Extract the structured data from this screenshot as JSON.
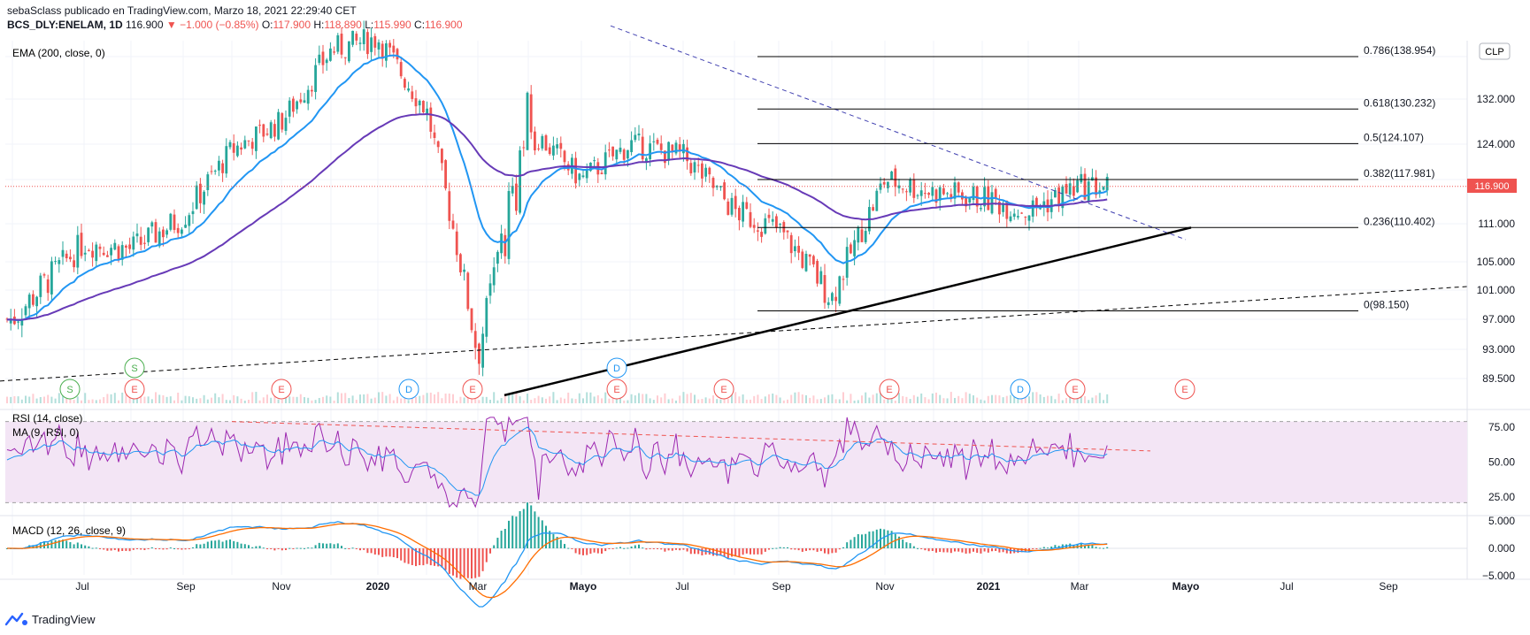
{
  "header": {
    "line1": "sebaSclass publicado en TradingView.com, Marzo 18, 2021 22:29:40 CET",
    "symbol": "BCS_DLY:ENELAM, 1D",
    "price": "116.900",
    "change": "▼ −1.000 (−0.85%)",
    "o_label": "O:",
    "o_val": "117.900",
    "h_label": "H:",
    "h_val": "118.890",
    "l_label": "L:",
    "l_val": "115.990",
    "c_label": "C:",
    "c_val": "116.900"
  },
  "indicators": {
    "ema": "EMA (200, close, 0)",
    "rsi": "RSI (14, close)",
    "rsi_ma": "MA (9, RSI, 0)",
    "macd": "MACD (12, 26, close, 9)"
  },
  "currency_badge": "CLP",
  "last_price_label": "116.900",
  "footer": {
    "brand": "TradingView"
  },
  "colors": {
    "up": "#26a69a",
    "down": "#ef5350",
    "ema200": "#673ab7",
    "ema_short": "#2196f3",
    "rsi": "#9c27b0",
    "rsi_ma": "#2196f3",
    "macd": "#2196f3",
    "signal": "#ff6d00",
    "rsi_band": "#f3e5f5"
  },
  "chart_data": [
    {
      "type": "line",
      "title": "BCS_DLY:ENELAM, 1D",
      "ylabel": "CLP",
      "y_ticks": [
        "89.500",
        "93.000",
        "97.000",
        "101.000",
        "105.000",
        "111.000",
        "116.900",
        "124.000",
        "132.000",
        "138.954"
      ],
      "x_ticks": [
        "Jul",
        "Sep",
        "Nov",
        "2020",
        "Mar",
        "Mayo",
        "Jul",
        "Sep",
        "Nov",
        "2021",
        "Mar",
        "Mayo",
        "Jul",
        "Sep"
      ],
      "close_approx": {
        "x": [
          "2019-06",
          "2019-07",
          "2019-08",
          "2019-09",
          "2019-10",
          "2019-11",
          "2019-12",
          "2020-01",
          "2020-02",
          "2020-03",
          "2020-04",
          "2020-05",
          "2020-06",
          "2020-07",
          "2020-08",
          "2020-09",
          "2020-10",
          "2020-11",
          "2020-12",
          "2021-01",
          "2021-02",
          "2021-03"
        ],
        "y": [
          97,
          108,
          107,
          112,
          123,
          128,
          140,
          142,
          130,
          92,
          127,
          118,
          124,
          122,
          113,
          110,
          100,
          118,
          116,
          115,
          113,
          116.9
        ]
      },
      "fibonacci": [
        {
          "level": "0.786",
          "value": 138.954
        },
        {
          "level": "0.618",
          "value": 130.232
        },
        {
          "level": "0.5",
          "value": 124.107
        },
        {
          "level": "0.382",
          "value": 117.981
        },
        {
          "level": "0.236",
          "value": 110.402
        },
        {
          "level": "0",
          "value": 98.15
        }
      ],
      "last_price": 116.9,
      "events": [
        "S",
        "S",
        "E",
        "E",
        "D",
        "E",
        "D",
        "E",
        "E",
        "E",
        "D",
        "E",
        "E"
      ]
    },
    {
      "type": "line",
      "title": "RSI (14, close)",
      "series": [
        {
          "name": "RSI (14, close)"
        },
        {
          "name": "MA (9, RSI, 0)"
        }
      ],
      "y_ticks": [
        "25.00",
        "50.00",
        "75.00"
      ],
      "bands": [
        30,
        70
      ]
    },
    {
      "type": "bar",
      "title": "MACD (12, 26, close, 9)",
      "y_ticks": [
        "5.000",
        "0.000",
        "−5.000"
      ]
    }
  ]
}
